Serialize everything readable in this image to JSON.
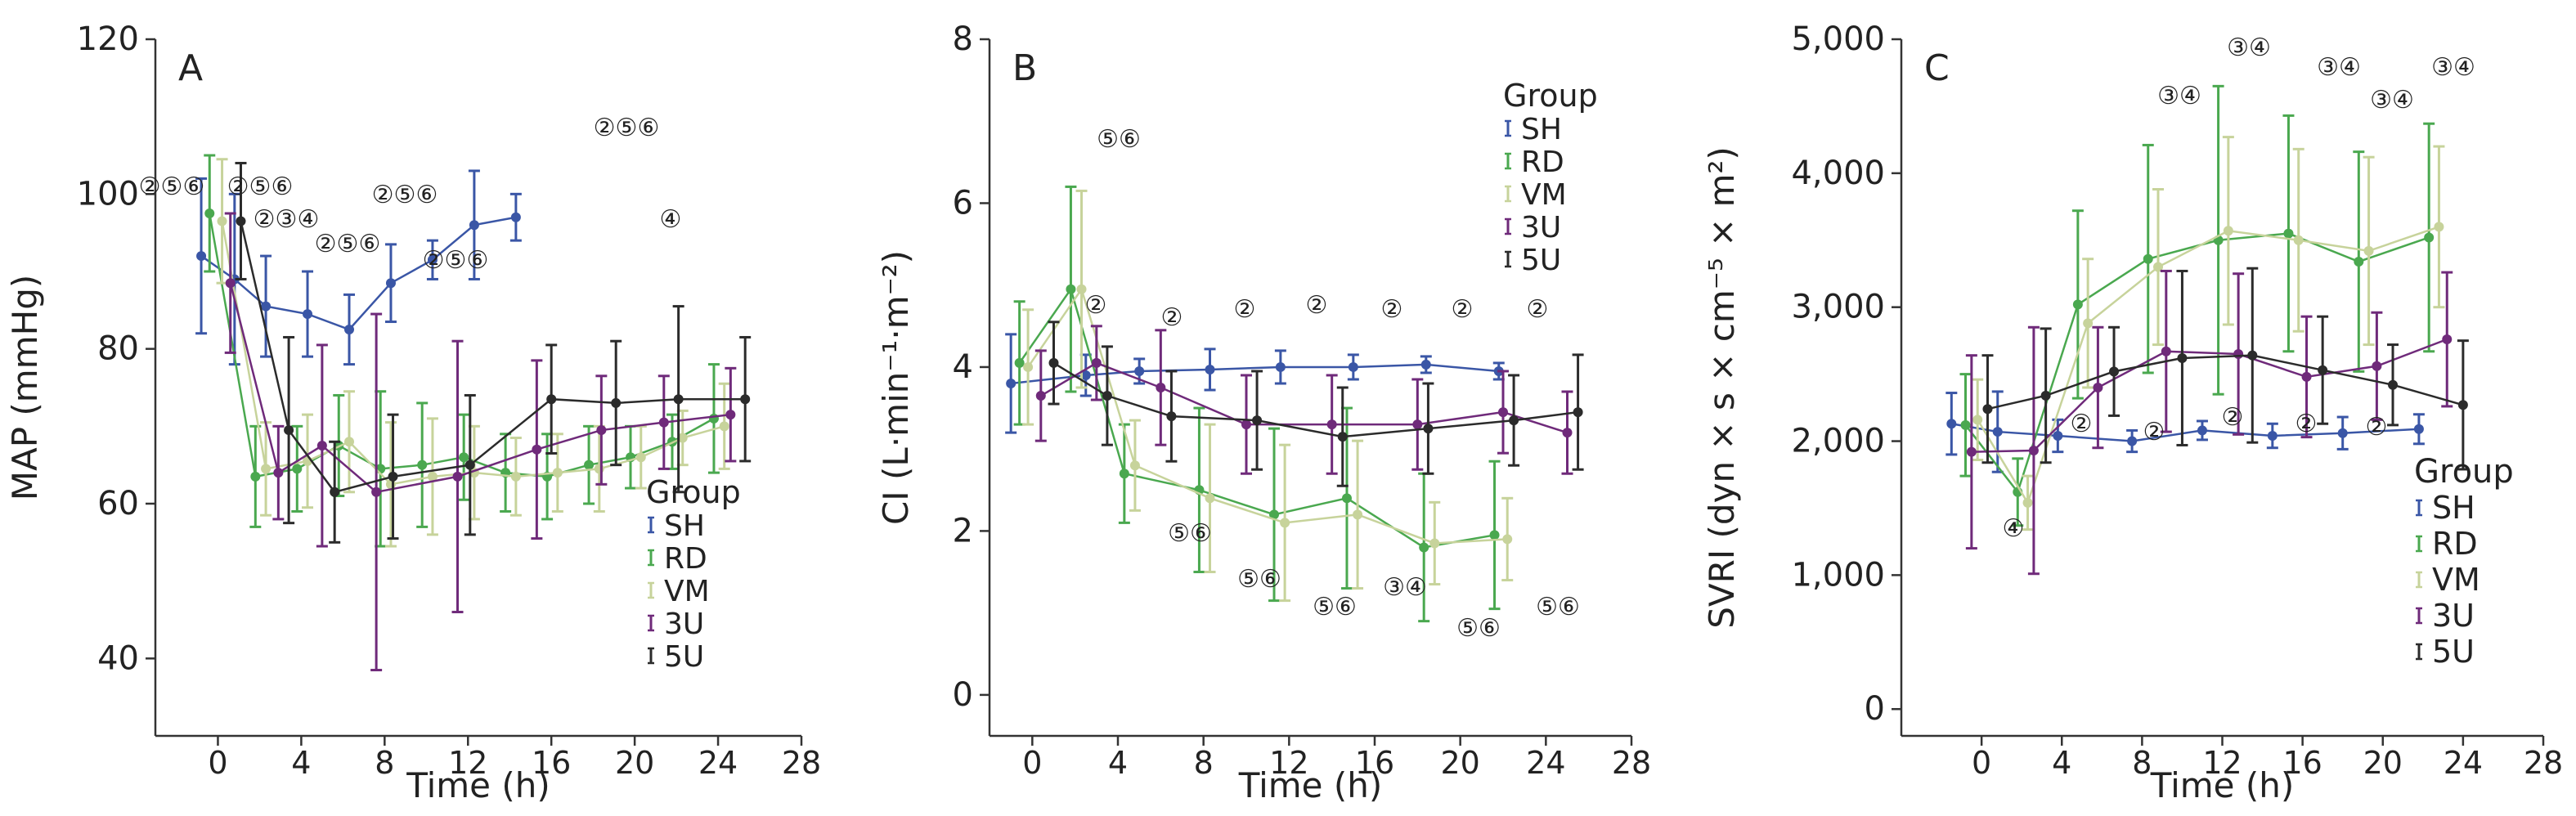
{
  "chart_data": [
    {
      "panel": "A",
      "type": "line",
      "xlabel": "Time (h)",
      "ylabel": "MAP (mmHg)",
      "xlim": [
        -3,
        28
      ],
      "ylim": [
        30,
        120
      ],
      "xticks": [
        0,
        4,
        8,
        12,
        16,
        20,
        24,
        28
      ],
      "yticks": [
        40,
        60,
        80,
        100,
        120
      ],
      "ytick_labels": [
        "40",
        "60",
        "80",
        "100",
        "120"
      ],
      "legend": {
        "title": "Group",
        "placement": "bottom-right"
      },
      "series": [
        {
          "name": "SH",
          "color": "#3a56a6",
          "x": [
            -0.8,
            0.8,
            2.3,
            4.3,
            6.3,
            8.3,
            10.3,
            12.3,
            14.3,
            16.3
          ],
          "y": [
            92,
            89,
            85.5,
            84.5,
            82.5,
            88.5,
            91.5,
            96,
            97,
            null
          ],
          "err": [
            10,
            11,
            6.5,
            5.5,
            4.5,
            5,
            2.5,
            7,
            3,
            null
          ]
        },
        {
          "name": "RD",
          "color": "#4aa84f",
          "x": [
            -0.4,
            1.8,
            3.8,
            5.8,
            7.8,
            9.8,
            11.8,
            13.8,
            15.8,
            17.8,
            19.8,
            21.8,
            23.8
          ],
          "y": [
            97.5,
            63.5,
            64.5,
            67.5,
            64.5,
            65,
            66,
            64,
            63.5,
            65,
            66,
            68,
            71
          ],
          "err": [
            7.5,
            6.5,
            5.5,
            6.5,
            10,
            8,
            5.5,
            5,
            5.5,
            5,
            4,
            3.5,
            7
          ]
        },
        {
          "name": "VM",
          "color": "#c7d39b",
          "x": [
            0.2,
            2.3,
            4.3,
            6.3,
            8.3,
            10.3,
            12.3,
            14.3,
            16.3,
            18.3,
            20.3,
            22.3,
            24.3
          ],
          "y": [
            96.5,
            64.5,
            65.5,
            68,
            62.5,
            63.5,
            64,
            63.5,
            64,
            64.5,
            66,
            68.5,
            70
          ],
          "err": [
            8,
            6,
            6,
            6.5,
            8,
            7.5,
            6,
            5,
            5,
            5.5,
            4,
            3.5,
            5.5
          ]
        },
        {
          "name": "3U",
          "color": "#6f2a7a",
          "x": [
            0.6,
            2.9,
            5.0,
            7.6,
            11.5,
            15.3,
            18.4,
            21.4,
            24.6
          ],
          "y": [
            88.5,
            64,
            67.5,
            61.5,
            63.5,
            67,
            69.5,
            70.5,
            71.5
          ],
          "err": [
            9,
            6,
            13,
            23,
            17.5,
            11.5,
            7,
            6,
            6
          ]
        },
        {
          "name": "5U",
          "color": "#2b2b2b",
          "x": [
            1.1,
            3.4,
            5.6,
            8.4,
            12.1,
            16.0,
            19.1,
            22.1,
            25.3
          ],
          "y": [
            96.5,
            69.5,
            61.5,
            63.5,
            65,
            73.5,
            73,
            73.5,
            73.5
          ],
          "err": [
            7.5,
            12,
            6.5,
            8,
            9,
            7,
            8,
            12,
            8
          ]
        }
      ],
      "annotations": [
        "②⑤⑥",
        "②⑤⑥",
        "②③④",
        "②⑤⑥",
        "②⑤⑥",
        "②⑤⑥",
        "②⑤⑥",
        "④"
      ]
    },
    {
      "panel": "B",
      "type": "line",
      "xlabel": "Time (h)",
      "ylabel": "CI (L·min⁻¹·m⁻²)",
      "xlim": [
        -2,
        28
      ],
      "ylim": [
        -0.5,
        8
      ],
      "xticks": [
        0,
        4,
        8,
        12,
        16,
        20,
        24,
        28
      ],
      "yticks": [
        0,
        2,
        4,
        6,
        8
      ],
      "ytick_labels": [
        "0",
        "2",
        "4",
        "6",
        "8"
      ],
      "legend": {
        "title": "Group",
        "placement": "top-right"
      },
      "series": [
        {
          "name": "SH",
          "color": "#3a56a6",
          "x": [
            -1.0,
            2.5,
            5.0,
            8.3,
            11.6,
            15.0,
            18.4,
            21.8
          ],
          "y": [
            3.8,
            3.9,
            3.95,
            3.97,
            4.0,
            4.0,
            4.03,
            3.95
          ],
          "err": [
            0.6,
            0.25,
            0.15,
            0.25,
            0.2,
            0.15,
            0.1,
            0.1
          ]
        },
        {
          "name": "RD",
          "color": "#4aa84f",
          "x": [
            -0.6,
            1.8,
            4.3,
            7.8,
            11.3,
            14.7,
            18.3,
            21.6
          ],
          "y": [
            4.05,
            4.95,
            2.7,
            2.5,
            2.2,
            2.4,
            1.8,
            1.95
          ],
          "err": [
            0.75,
            1.25,
            0.6,
            1.0,
            1.05,
            1.1,
            0.9,
            0.9
          ]
        },
        {
          "name": "VM",
          "color": "#c7d39b",
          "x": [
            -0.2,
            2.3,
            4.8,
            8.3,
            11.8,
            15.2,
            18.8,
            22.2
          ],
          "y": [
            4.0,
            4.95,
            2.8,
            2.4,
            2.1,
            2.2,
            1.85,
            1.9
          ],
          "err": [
            0.7,
            1.2,
            0.55,
            0.9,
            0.95,
            0.9,
            0.5,
            0.5
          ]
        },
        {
          "name": "3U",
          "color": "#6f2a7a",
          "x": [
            0.4,
            3.0,
            6.0,
            10.0,
            14.0,
            18.0,
            22.0,
            25.0
          ],
          "y": [
            3.65,
            4.05,
            3.75,
            3.3,
            3.3,
            3.3,
            3.45,
            3.2
          ],
          "err": [
            0.55,
            0.45,
            0.7,
            0.6,
            0.6,
            0.55,
            0.5,
            0.5
          ]
        },
        {
          "name": "5U",
          "color": "#2b2b2b",
          "x": [
            1.0,
            3.5,
            6.5,
            10.5,
            14.5,
            18.5,
            22.5,
            25.5
          ],
          "y": [
            4.05,
            3.65,
            3.4,
            3.35,
            3.15,
            3.25,
            3.35,
            3.45
          ],
          "err": [
            0.5,
            0.6,
            0.55,
            0.6,
            0.6,
            0.55,
            0.55,
            0.7
          ]
        }
      ],
      "annotations": [
        "⑤⑥",
        "②",
        "②",
        "②",
        "②",
        "②",
        "②",
        "②",
        "⑤⑥",
        "⑤⑥",
        "⑤⑥",
        "③④",
        "⑤⑥",
        "⑤⑥"
      ]
    },
    {
      "panel": "C",
      "type": "line",
      "xlabel": "Time (h)",
      "ylabel": "SVRI (dyn × s × cm⁻⁵ × m²)",
      "xlim": [
        -4,
        28
      ],
      "ylim": [
        -200,
        5000
      ],
      "xticks": [
        0,
        4,
        8,
        12,
        16,
        20,
        24,
        28
      ],
      "yticks": [
        0,
        1000,
        2000,
        3000,
        4000,
        5000
      ],
      "ytick_labels": [
        "0",
        "1,000",
        "2,000",
        "3,000",
        "4,000",
        "5,000"
      ],
      "legend": {
        "title": "Group",
        "placement": "bottom-right"
      },
      "series": [
        {
          "name": "SH",
          "color": "#3a56a6",
          "x": [
            -1.5,
            0.8,
            3.8,
            7.5,
            11.0,
            14.5,
            18.0,
            21.8
          ],
          "y": [
            2130,
            2070,
            2040,
            2000,
            2080,
            2040,
            2060,
            2090
          ],
          "err": [
            230,
            300,
            120,
            80,
            70,
            90,
            120,
            110
          ]
        },
        {
          "name": "RD",
          "color": "#4aa84f",
          "x": [
            -0.8,
            1.8,
            4.8,
            8.3,
            11.8,
            15.3,
            18.8,
            22.3
          ],
          "y": [
            2120,
            1620,
            3020,
            3360,
            3500,
            3550,
            3340,
            3520
          ],
          "err": [
            380,
            250,
            700,
            850,
            1150,
            880,
            820,
            850
          ]
        },
        {
          "name": "VM",
          "color": "#c7d39b",
          "x": [
            -0.2,
            2.3,
            5.3,
            8.8,
            12.3,
            15.8,
            19.3,
            22.8
          ],
          "y": [
            2160,
            1540,
            2880,
            3300,
            3570,
            3500,
            3420,
            3600
          ],
          "err": [
            300,
            200,
            480,
            580,
            700,
            680,
            700,
            600
          ]
        },
        {
          "name": "3U",
          "color": "#6f2a7a",
          "x": [
            -0.5,
            2.6,
            5.8,
            9.2,
            12.8,
            16.2,
            19.7,
            23.2
          ],
          "y": [
            1920,
            1930,
            2400,
            2670,
            2650,
            2480,
            2560,
            2760
          ],
          "err": [
            720,
            920,
            450,
            600,
            600,
            450,
            400,
            500
          ]
        },
        {
          "name": "5U",
          "color": "#2b2b2b",
          "x": [
            0.3,
            3.2,
            6.6,
            10.0,
            13.5,
            17.0,
            20.5,
            24.0
          ],
          "y": [
            2240,
            2340,
            2520,
            2620,
            2640,
            2530,
            2420,
            2270
          ],
          "err": [
            400,
            500,
            330,
            650,
            650,
            400,
            300,
            480
          ]
        }
      ],
      "annotations": [
        "②",
        "②",
        "②",
        "②",
        "②",
        "④",
        "③④",
        "③④",
        "③④",
        "③④",
        "③④"
      ]
    }
  ],
  "panels": [
    {
      "letter": "A",
      "legend_title": "Group",
      "legend_items": [
        "SH",
        "RD",
        "VM",
        "3U",
        "5U"
      ]
    },
    {
      "letter": "B",
      "legend_title": "Group",
      "legend_items": [
        "SH",
        "RD",
        "VM",
        "3U",
        "5U"
      ]
    },
    {
      "letter": "C",
      "legend_title": "Group",
      "legend_items": [
        "SH",
        "RD",
        "VM",
        "3U",
        "5U"
      ]
    }
  ]
}
